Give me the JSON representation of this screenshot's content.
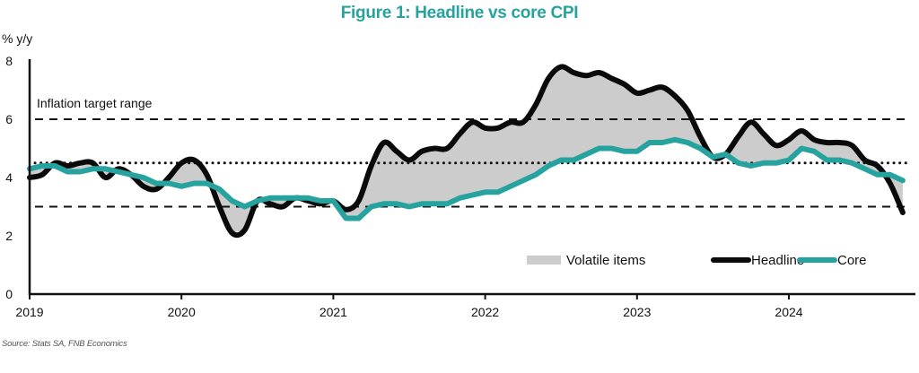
{
  "chart_data": {
    "type": "line",
    "title": "Figure 1: Headline vs core CPI",
    "ylabel": "% y/y",
    "xlabel": "",
    "ylim": [
      0,
      8
    ],
    "yticks": [
      "0",
      "2",
      "4",
      "6",
      "8"
    ],
    "ytick_values": [
      0,
      2,
      4,
      6,
      8
    ],
    "xticks": [
      "2019",
      "2020",
      "2021",
      "2022",
      "2023",
      "2024"
    ],
    "x_start": "2019-01",
    "x_end": "2024-10",
    "frequency": "monthly",
    "grid": false,
    "legend_position": "bottom-right",
    "reference_lines": [
      {
        "name": "upper-target",
        "value": 6,
        "style": "dashed"
      },
      {
        "name": "midpoint",
        "value": 4.5,
        "style": "dotted"
      },
      {
        "name": "lower-target",
        "value": 3,
        "style": "dashed"
      }
    ],
    "annotations": [
      {
        "text": "Inflation target range"
      }
    ],
    "series": [
      {
        "name": "Headline",
        "color": "#0a0a0a",
        "values": [
          4.0,
          4.1,
          4.5,
          4.4,
          4.5,
          4.5,
          4.0,
          4.3,
          4.1,
          3.7,
          3.6,
          4.0,
          4.5,
          4.6,
          4.1,
          3.0,
          2.1,
          2.2,
          3.2,
          3.1,
          3.0,
          3.3,
          3.2,
          3.1,
          3.2,
          2.9,
          3.2,
          4.4,
          5.2,
          4.9,
          4.6,
          4.9,
          5.0,
          5.0,
          5.5,
          5.9,
          5.7,
          5.7,
          5.9,
          5.9,
          6.5,
          7.4,
          7.8,
          7.6,
          7.5,
          7.6,
          7.4,
          7.2,
          6.9,
          7.0,
          7.1,
          6.8,
          6.3,
          5.4,
          4.7,
          4.8,
          5.4,
          5.9,
          5.5,
          5.1,
          5.3,
          5.6,
          5.3,
          5.2,
          5.2,
          5.1,
          4.6,
          4.4,
          3.8,
          2.8
        ]
      },
      {
        "name": "Core",
        "color": "#27a39f",
        "values": [
          4.3,
          4.4,
          4.4,
          4.2,
          4.2,
          4.3,
          4.3,
          4.2,
          4.1,
          4.0,
          3.8,
          3.8,
          3.7,
          3.8,
          3.8,
          3.6,
          3.2,
          3.0,
          3.2,
          3.3,
          3.3,
          3.3,
          3.3,
          3.2,
          3.2,
          2.6,
          2.6,
          3.0,
          3.1,
          3.1,
          3.0,
          3.1,
          3.1,
          3.1,
          3.3,
          3.4,
          3.5,
          3.5,
          3.7,
          3.9,
          4.1,
          4.4,
          4.6,
          4.6,
          4.8,
          5.0,
          5.0,
          4.9,
          4.9,
          5.2,
          5.2,
          5.3,
          5.2,
          5.0,
          4.7,
          4.8,
          4.5,
          4.4,
          4.5,
          4.5,
          4.6,
          5.0,
          4.9,
          4.6,
          4.6,
          4.5,
          4.3,
          4.1,
          4.1,
          3.9
        ]
      }
    ],
    "area": {
      "name": "Volatile items",
      "color": "#cccccc",
      "between": [
        "Headline",
        "Core"
      ]
    },
    "legend": [
      {
        "label": "Volatile items",
        "kind": "area",
        "color": "#cccccc"
      },
      {
        "label": "Headline",
        "kind": "line",
        "color": "#0a0a0a"
      },
      {
        "label": "Core",
        "kind": "line",
        "color": "#27a39f"
      }
    ],
    "source": "Source: Stats SA, FNB Economics"
  }
}
